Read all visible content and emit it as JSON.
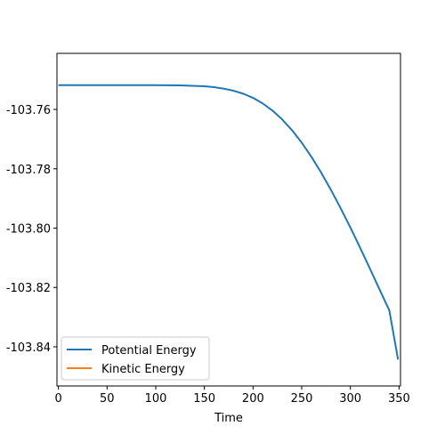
{
  "chart_data": {
    "type": "line",
    "title": "",
    "xlabel": "Time",
    "ylabel": "",
    "xlim": [
      -1.5,
      351.5
    ],
    "ylim": [
      -103.8532,
      -103.7411
    ],
    "x_ticks": [
      0,
      50,
      100,
      150,
      200,
      250,
      300,
      350
    ],
    "y_ticks": [
      -103.84,
      -103.82,
      -103.8,
      -103.78,
      -103.76
    ],
    "grid": false,
    "legend_position": "lower-left",
    "series": [
      {
        "name": "Potential Energy",
        "color": "#1f77b4",
        "x": [
          0,
          25,
          50,
          75,
          100,
          125,
          150,
          160,
          170,
          180,
          190,
          200,
          210,
          220,
          230,
          240,
          250,
          260,
          270,
          280,
          290,
          300,
          310,
          320,
          330,
          340,
          349
        ],
        "y": [
          -103.7518,
          -103.7518,
          -103.7518,
          -103.7518,
          -103.7518,
          -103.7519,
          -103.7522,
          -103.7525,
          -103.753,
          -103.7537,
          -103.7547,
          -103.7561,
          -103.758,
          -103.7604,
          -103.7634,
          -103.767,
          -103.7712,
          -103.776,
          -103.7813,
          -103.7871,
          -103.7933,
          -103.7998,
          -103.8066,
          -103.8136,
          -103.8207,
          -103.8277,
          -103.8443
        ]
      },
      {
        "name": "Kinetic Energy",
        "color": "#ff7f0e",
        "x": [],
        "y": []
      }
    ]
  }
}
